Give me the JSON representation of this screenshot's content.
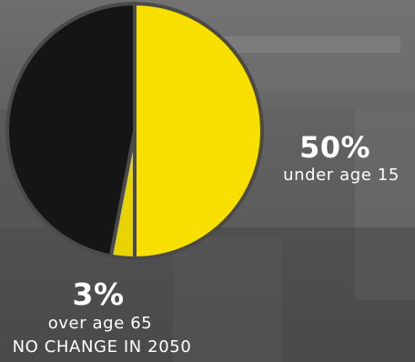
{
  "chart_data": {
    "type": "pie",
    "slices": [
      {
        "value": 50,
        "color": "#f7e000"
      },
      {
        "value": 3,
        "color": "#e8d400"
      },
      {
        "value": 47,
        "color": "#151515"
      }
    ],
    "annotations": {
      "under_percent": "50%",
      "under_label": "under age 15",
      "over_percent": "3%",
      "over_label": "over age 65",
      "footnote": "NO CHANGE IN 2050"
    }
  },
  "colors": {
    "background": "#5b5b5b",
    "text": "#ffffff",
    "slice_outline": "#4a4a4a"
  }
}
